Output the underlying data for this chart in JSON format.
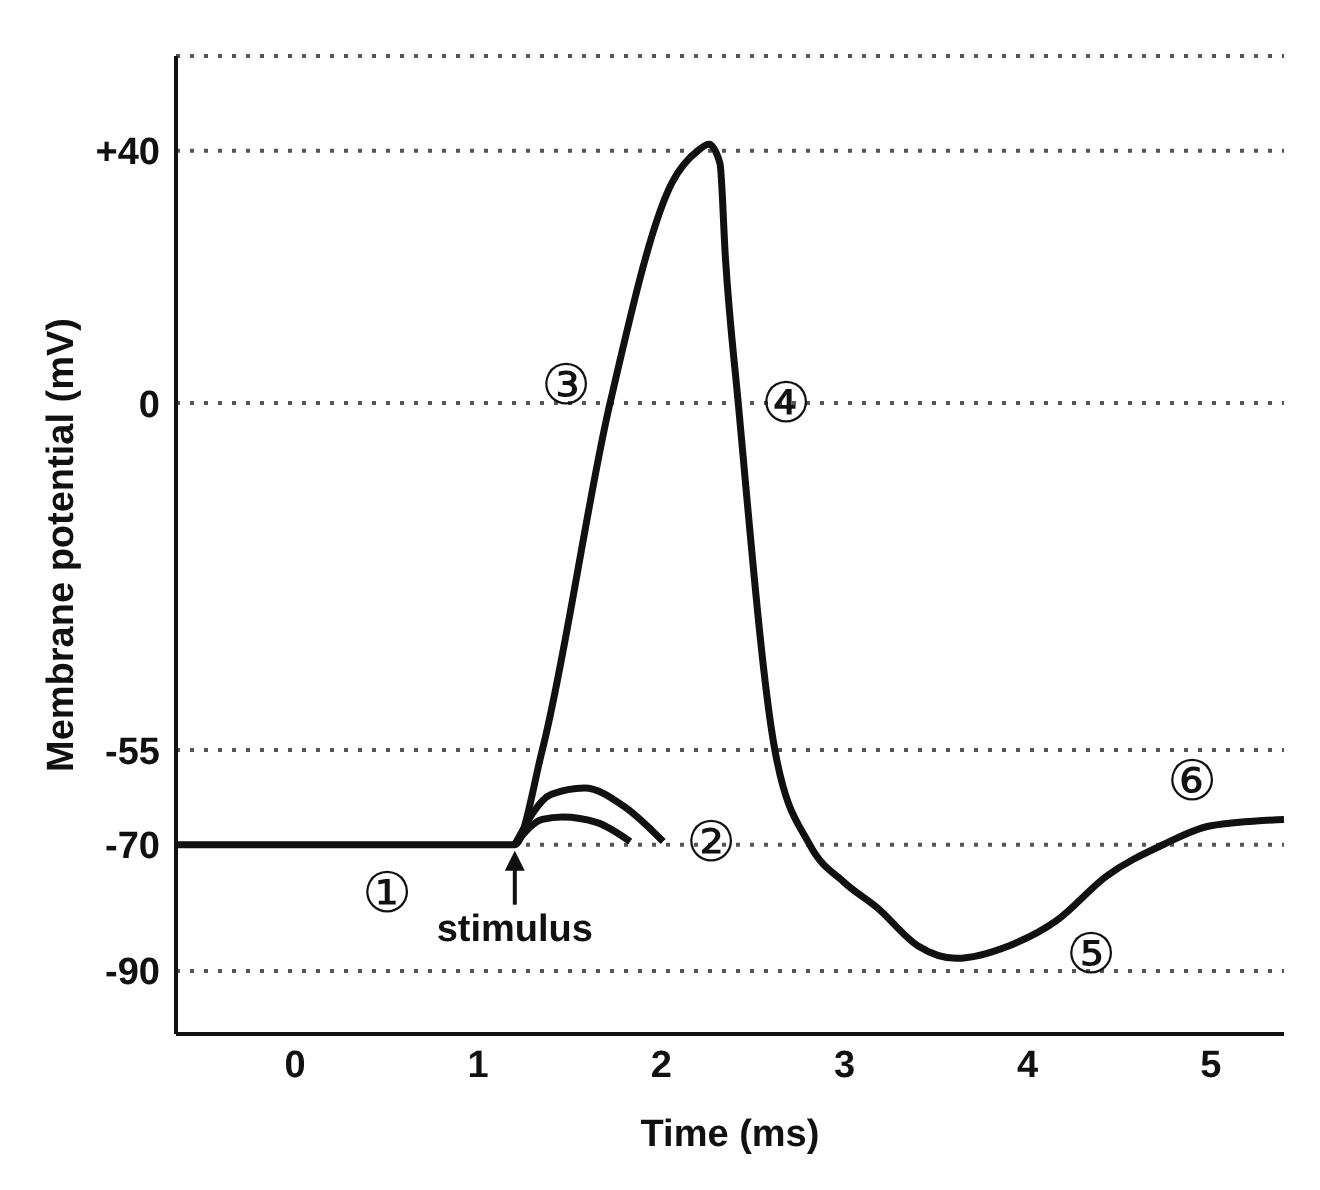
{
  "chart_data": {
    "type": "line",
    "xlabel": "Time (ms)",
    "ylabel": "Membrane potential (mV)",
    "xlim": [
      -0.65,
      5.4
    ],
    "xticks": [
      0,
      1,
      2,
      3,
      4,
      5
    ],
    "ylim": [
      -100,
      55
    ],
    "yticks": [
      {
        "value": 40,
        "label": "+40"
      },
      0,
      -55,
      -70,
      -90
    ],
    "grid": "y",
    "marker": "none",
    "line_style": "solid",
    "series": [
      {
        "color": "#111111",
        "x": [
          -0.65,
          0.5,
          1.2,
          1.35,
          1.72,
          2.06,
          2.2,
          2.26,
          2.32,
          2.35,
          2.42,
          2.62,
          2.81,
          3.0,
          3.18,
          3.4,
          3.61,
          3.9,
          4.16,
          4.43,
          4.74,
          5.0,
          5.4
        ],
        "values": [
          -70,
          -70,
          -70,
          -55,
          0,
          35,
          40,
          41,
          38,
          23,
          0,
          -55,
          -70,
          -76,
          -80,
          -86,
          -88,
          -86,
          -82,
          -75,
          -70,
          -67,
          -66
        ]
      },
      {
        "color": "#111111",
        "x": [
          1.2,
          1.4,
          1.58,
          1.8,
          2.01
        ],
        "values": [
          -70,
          -62,
          -61,
          -64,
          -69.5
        ]
      },
      {
        "color": "#111111",
        "x": [
          1.2,
          1.35,
          1.46,
          1.65,
          1.83
        ],
        "values": [
          -70,
          -66,
          -65.6,
          -66.5,
          -69.5
        ]
      }
    ],
    "annotations": [
      {
        "text": "①",
        "x": 0.5,
        "y": -70
      },
      {
        "text": "②",
        "x": 2.01,
        "y": -69.5
      },
      {
        "text": "③",
        "x": 1.72,
        "y": 0
      },
      {
        "text": "④",
        "x": 2.42,
        "y": 0
      },
      {
        "text": "⑤",
        "x": 4.16,
        "y": -82
      },
      {
        "text": "⑥",
        "x": 5.0,
        "y": -67
      },
      {
        "text": "stimulus",
        "x": 1.2,
        "y": -70
      }
    ]
  }
}
